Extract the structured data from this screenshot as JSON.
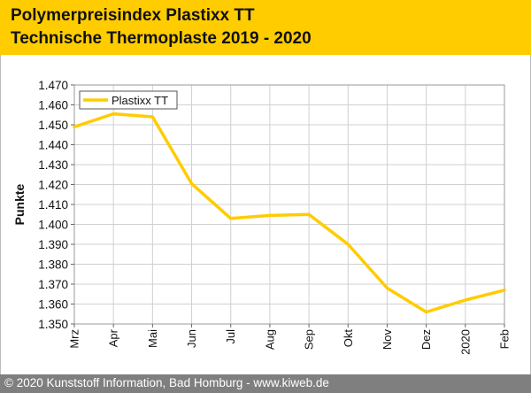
{
  "header": {
    "title_line1": "Polymerpreisindex Plastixx TT",
    "title_line2": "Technische Thermoplaste 2019 - 2020"
  },
  "footer": {
    "copyright": "© 2020 Kunststoff Information, Bad Homburg - www.kiweb.de"
  },
  "colors": {
    "header_bg": "#ffcc00",
    "series_line": "#ffcc00",
    "footer_bg": "#7f7f7f",
    "grid": "#d0d0d0"
  },
  "chart_data": {
    "type": "line",
    "title": "Polymerpreisindex Plastixx TT",
    "subtitle": "Technische Thermoplaste 2019 - 2020",
    "xlabel": "",
    "ylabel": "Punkte",
    "categories": [
      "Mrz",
      "Apr",
      "Mai",
      "Jun",
      "Jul",
      "Aug",
      "Sep",
      "Okt",
      "Nov",
      "Dez",
      "2020",
      "Feb"
    ],
    "series": [
      {
        "name": "Plastixx TT",
        "values": [
          1449,
          1455.5,
          1454,
          1420.5,
          1403,
          1404.5,
          1405,
          1390,
          1368,
          1356,
          1362,
          1367
        ]
      }
    ],
    "ylim": [
      1350,
      1470
    ],
    "y_ticks": [
      1350,
      1360,
      1370,
      1380,
      1390,
      1400,
      1410,
      1420,
      1430,
      1440,
      1450,
      1460,
      1470
    ],
    "y_tick_labels": [
      "1.350",
      "1.360",
      "1.370",
      "1.380",
      "1.390",
      "1.400",
      "1.410",
      "1.420",
      "1.430",
      "1.440",
      "1.450",
      "1.460",
      "1.470"
    ],
    "grid": true,
    "legend_position": "top-left"
  }
}
